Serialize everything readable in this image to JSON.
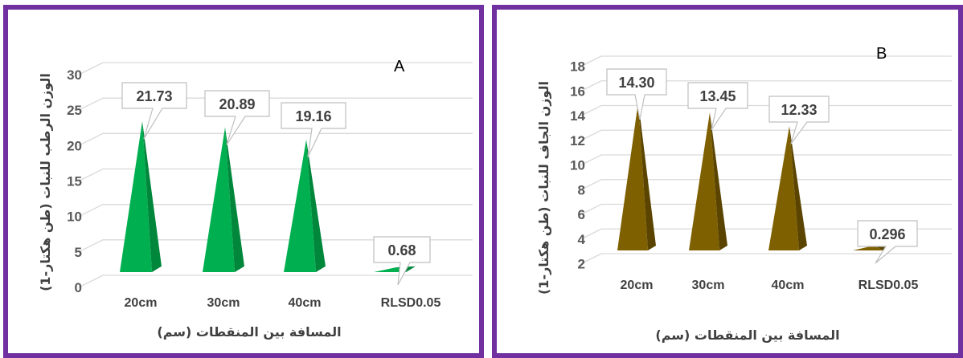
{
  "chart_data": [
    {
      "panel": "A",
      "type": "bar",
      "title": "A",
      "ylabel": "الوزن الرطب للنبات (طن هكتار-1)",
      "xlabel": "المسافة بين المنقطات (سم)",
      "categories": [
        "20cm",
        "30cm",
        "40cm",
        "RLSD0.05"
      ],
      "values": [
        21.73,
        20.89,
        19.16,
        0.68
      ],
      "data_labels": [
        "21.73",
        "20.89",
        "19.16",
        "0.68"
      ],
      "ylim": [
        0,
        30
      ],
      "yticks": [
        "0",
        "5",
        "10",
        "15",
        "20",
        "25",
        "30"
      ],
      "grid": true,
      "bar_color": "#00b050",
      "bar_shade": "#00873c",
      "legend": "none"
    },
    {
      "panel": "B",
      "type": "bar",
      "title": "B",
      "ylabel": "الوزن الجاف للنبات (طن هكتار-1)",
      "xlabel": "المسافة بين المنقطات (سم)",
      "categories": [
        "20cm",
        "30cm",
        "40cm",
        "RLSD0.05"
      ],
      "values": [
        14.3,
        13.45,
        12.33,
        0.296
      ],
      "data_labels": [
        "14.30",
        "13.45",
        "12.33",
        "0.296"
      ],
      "ylim": [
        2,
        18
      ],
      "yticks": [
        "2",
        "4",
        "6",
        "8",
        "10",
        "12",
        "14",
        "16",
        "18"
      ],
      "grid": true,
      "bar_color": "#7f6000",
      "bar_shade": "#5a4400",
      "legend": "none"
    }
  ],
  "colors": {
    "border": "#7030a0",
    "grid": "#d9d9d9"
  }
}
